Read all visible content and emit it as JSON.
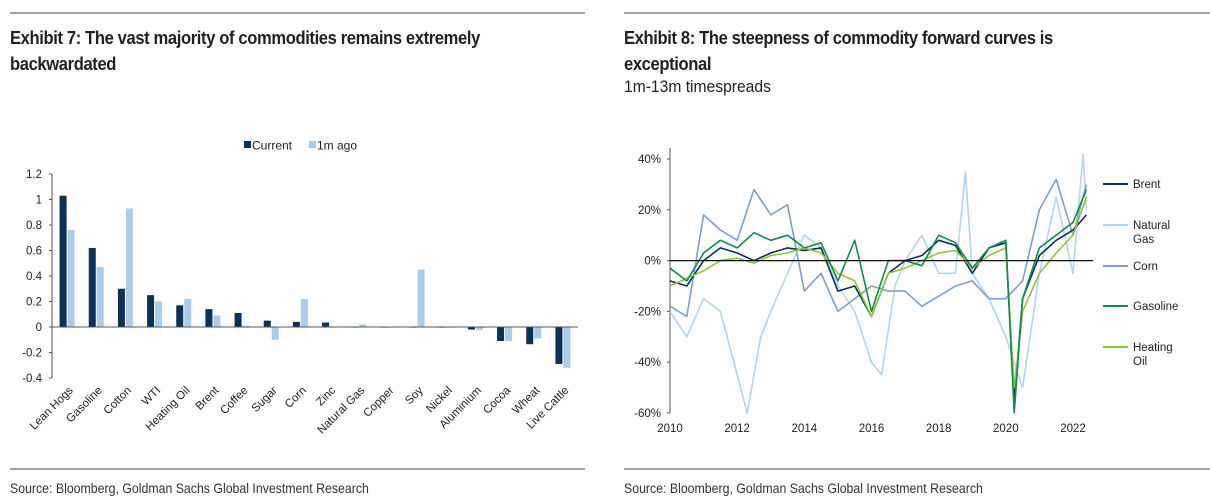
{
  "panels": {
    "left": {
      "title": "Exhibit 7: The vast majority of commodities remains extremely backwardated",
      "source": "Source: Bloomberg, Goldman Sachs Global Investment Research"
    },
    "right": {
      "title": "Exhibit 8: The steepness of commodity forward curves is exceptional",
      "subtitle": "1m-13m timespreads",
      "source": "Source: Bloomberg, Goldman Sachs Global Investment Research"
    }
  },
  "chart_data": [
    {
      "type": "bar",
      "title": "Exhibit 7: The vast majority of commodities remains extremely backwardated",
      "xlabel": "",
      "ylabel": "",
      "ylim": [
        -0.4,
        1.2
      ],
      "yticks": [
        -0.4,
        -0.2,
        0,
        0.2,
        0.4,
        0.6,
        0.8,
        1,
        1.2
      ],
      "ytick_labels": [
        "-0.4",
        "-0.2",
        "0",
        "0.2",
        "0.4",
        "0.6",
        "0.8",
        "1",
        "1.2"
      ],
      "grid": false,
      "legend_position": "top-center",
      "categories": [
        "Lean Hogs",
        "Gasoline",
        "Cotton",
        "WTI",
        "Heating Oil",
        "Brent",
        "Coffee",
        "Sugar",
        "Corn",
        "Zinc",
        "Natural Gas",
        "Copper",
        "Soy",
        "Nickel",
        "Aluminium",
        "Cocoa",
        "Wheat",
        "Live Cattle"
      ],
      "series": [
        {
          "name": "Current",
          "color": "#0b3158",
          "values": [
            1.03,
            0.62,
            0.3,
            0.25,
            0.17,
            0.14,
            0.11,
            0.05,
            0.04,
            0.035,
            0.0,
            0.0,
            -0.005,
            -0.005,
            -0.02,
            -0.11,
            -0.135,
            -0.29
          ]
        },
        {
          "name": "1m ago",
          "color": "#a9cdea",
          "values": [
            0.76,
            0.47,
            0.93,
            0.2,
            0.22,
            0.09,
            0.01,
            -0.1,
            0.22,
            0.0,
            0.02,
            0.0,
            0.45,
            0.0,
            -0.025,
            -0.11,
            -0.09,
            -0.32
          ]
        }
      ]
    },
    {
      "type": "line",
      "title": "Exhibit 8: The steepness of commodity forward curves is exceptional",
      "subtitle": "1m-13m timespreads",
      "xlabel": "",
      "ylabel": "",
      "xlim": [
        2010,
        2022.6
      ],
      "ylim": [
        -60,
        40
      ],
      "xticks": [
        2010,
        2012,
        2014,
        2016,
        2018,
        2020,
        2022
      ],
      "xtick_labels": [
        "2010",
        "2012",
        "2014",
        "2016",
        "2018",
        "2020",
        "2022"
      ],
      "yticks": [
        -60,
        -40,
        -20,
        0,
        20,
        40
      ],
      "ytick_labels": [
        "-60%",
        "-40%",
        "-20%",
        "0%",
        "20%",
        "40%"
      ],
      "y_unit": "%",
      "grid": false,
      "legend_position": "right",
      "series": [
        {
          "name": "Brent",
          "color": "#0b3158",
          "x": [
            2010,
            2010.5,
            2011,
            2011.5,
            2012,
            2012.5,
            2013,
            2013.5,
            2014,
            2014.5,
            2015,
            2015.5,
            2016,
            2016.5,
            2017,
            2017.5,
            2018,
            2018.5,
            2019,
            2019.5,
            2020,
            2020.25,
            2020.5,
            2021,
            2021.5,
            2022,
            2022.4
          ],
          "y": [
            -8,
            -10,
            0,
            5,
            3,
            0,
            3,
            5,
            4,
            5,
            -12,
            -10,
            -22,
            -5,
            0,
            2,
            8,
            6,
            -5,
            5,
            7,
            -55,
            -15,
            2,
            8,
            12,
            18
          ]
        },
        {
          "name": "Natural Gas",
          "color": "#b4d5ee",
          "x": [
            2010,
            2010.5,
            2011,
            2011.5,
            2012,
            2012.3,
            2012.7,
            2013,
            2013.5,
            2014,
            2014.5,
            2015,
            2015.5,
            2016,
            2016.3,
            2016.7,
            2017,
            2017.5,
            2018,
            2018.5,
            2018.8,
            2019,
            2019.5,
            2020,
            2020.5,
            2021,
            2021.5,
            2022,
            2022.3,
            2022.4
          ],
          "y": [
            -20,
            -30,
            -15,
            -20,
            -45,
            -60,
            -30,
            -20,
            -5,
            10,
            5,
            -10,
            -20,
            -40,
            -45,
            -10,
            0,
            10,
            -5,
            -5,
            35,
            -5,
            -15,
            -30,
            -50,
            -5,
            25,
            -5,
            42,
            20
          ]
        },
        {
          "name": "Corn",
          "color": "#7f9fc7",
          "x": [
            2010,
            2010.5,
            2011,
            2011.5,
            2012,
            2012.5,
            2013,
            2013.5,
            2014,
            2014.5,
            2015,
            2015.5,
            2016,
            2016.5,
            2017,
            2017.5,
            2018,
            2018.5,
            2019,
            2019.5,
            2020,
            2020.5,
            2021,
            2021.5,
            2022,
            2022.4
          ],
          "y": [
            -18,
            -22,
            18,
            12,
            8,
            28,
            18,
            22,
            -12,
            -5,
            -20,
            -15,
            -10,
            -12,
            -12,
            -18,
            -14,
            -10,
            -8,
            -15,
            -15,
            -8,
            20,
            32,
            10,
            30
          ]
        },
        {
          "name": "Gasoline",
          "color": "#138a4e",
          "x": [
            2010,
            2010.5,
            2011,
            2011.5,
            2012,
            2012.5,
            2013,
            2013.5,
            2014,
            2014.5,
            2015,
            2015.5,
            2016,
            2016.5,
            2017,
            2017.5,
            2018,
            2018.5,
            2019,
            2019.5,
            2020,
            2020.25,
            2020.5,
            2021,
            2021.5,
            2022,
            2022.4
          ],
          "y": [
            -3,
            -8,
            3,
            8,
            5,
            11,
            8,
            10,
            5,
            7,
            -8,
            8,
            -20,
            0,
            0,
            -2,
            10,
            7,
            -3,
            5,
            8,
            -60,
            -15,
            5,
            10,
            15,
            28
          ]
        },
        {
          "name": "Heating Oil",
          "color": "#8dc641",
          "x": [
            2010,
            2010.5,
            2011,
            2011.5,
            2012,
            2012.5,
            2013,
            2013.5,
            2014,
            2014.5,
            2015,
            2015.5,
            2016,
            2016.5,
            2017,
            2017.5,
            2018,
            2018.5,
            2019,
            2019.5,
            2020,
            2020.25,
            2020.5,
            2021,
            2021.5,
            2022,
            2022.4
          ],
          "y": [
            -10,
            -7,
            -4,
            0,
            1,
            -1,
            2,
            3,
            5,
            3,
            -5,
            -8,
            -22,
            -5,
            -3,
            0,
            3,
            4,
            -3,
            2,
            5,
            -50,
            -20,
            -5,
            3,
            10,
            25
          ]
        }
      ]
    }
  ]
}
